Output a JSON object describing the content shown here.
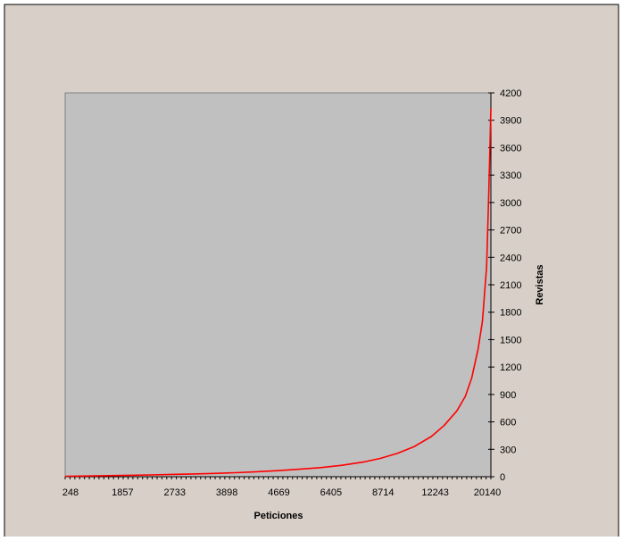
{
  "chart_data": {
    "type": "line",
    "title": "",
    "xlabel": "Peticiones",
    "ylabel": "Revistas",
    "x_tick_labels": [
      "248",
      "1857",
      "2733",
      "3898",
      "4669",
      "6405",
      "8714",
      "12243",
      "20140"
    ],
    "y_ticks": [
      0,
      300,
      600,
      900,
      1200,
      1500,
      1800,
      2100,
      2400,
      2700,
      3000,
      3300,
      3600,
      3900,
      4200
    ],
    "ylim": [
      0,
      4200
    ],
    "y_axis_position": "right",
    "grid": false,
    "legend": "none",
    "colors": {
      "background": "#D8D0C8",
      "plot_area": "#C0C0C0",
      "line": "#FF0000",
      "border": "#000000"
    },
    "series": [
      {
        "points": [
          [
            0.0,
            5
          ],
          [
            0.05,
            8
          ],
          [
            0.1,
            12
          ],
          [
            0.15,
            16
          ],
          [
            0.2,
            20
          ],
          [
            0.25,
            25
          ],
          [
            0.3,
            30
          ],
          [
            0.35,
            36
          ],
          [
            0.4,
            44
          ],
          [
            0.45,
            55
          ],
          [
            0.5,
            66
          ],
          [
            0.55,
            82
          ],
          [
            0.6,
            100
          ],
          [
            0.65,
            125
          ],
          [
            0.7,
            160
          ],
          [
            0.74,
            200
          ],
          [
            0.78,
            255
          ],
          [
            0.82,
            330
          ],
          [
            0.86,
            440
          ],
          [
            0.89,
            560
          ],
          [
            0.92,
            720
          ],
          [
            0.94,
            880
          ],
          [
            0.955,
            1080
          ],
          [
            0.97,
            1400
          ],
          [
            0.98,
            1700
          ],
          [
            0.99,
            2300
          ],
          [
            0.995,
            3100
          ],
          [
            1.0,
            4030
          ]
        ]
      }
    ]
  }
}
